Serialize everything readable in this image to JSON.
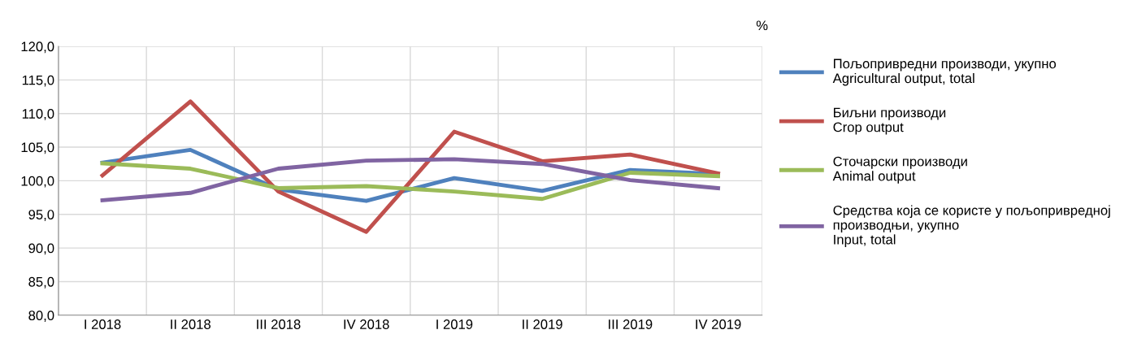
{
  "chart_data": {
    "type": "line",
    "ylabel": "%",
    "categories": [
      "I 2018",
      "II 2018",
      "III 2018",
      "IV 2018",
      "I 2019",
      "II 2019",
      "III 2019",
      "IV 2019"
    ],
    "series": [
      {
        "name": "Пољопривредни производи, укупно\nAgricultural output, total",
        "color": "#4f81bd",
        "values": [
          102.7,
          104.6,
          98.7,
          97.0,
          100.4,
          98.5,
          101.6,
          101.0
        ]
      },
      {
        "name": "Биљни производи\nCrop output",
        "color": "#c0504d",
        "values": [
          100.8,
          111.8,
          98.4,
          92.4,
          107.3,
          102.9,
          103.9,
          101.1
        ]
      },
      {
        "name": "Сточарски производи\nAnimal output",
        "color": "#9bbb59",
        "values": [
          102.6,
          101.8,
          98.9,
          99.2,
          98.4,
          97.3,
          101.2,
          100.7
        ]
      },
      {
        "name": "Средства која се користе у пољопривредној\nпроизводњи, укупно\nInput, total",
        "color": "#8064a2",
        "values": [
          97.1,
          98.2,
          101.8,
          103.0,
          103.2,
          102.5,
          100.1,
          98.9
        ]
      }
    ],
    "ylim": [
      80,
      120
    ],
    "yticks": [
      {
        "value": 80,
        "label": "80,0"
      },
      {
        "value": 85,
        "label": "85,0"
      },
      {
        "value": 90,
        "label": "90,0"
      },
      {
        "value": 95,
        "label": "95,0"
      },
      {
        "value": 100,
        "label": "100,0"
      },
      {
        "value": 105,
        "label": "105,0"
      },
      {
        "value": 110,
        "label": "110,0"
      },
      {
        "value": 115,
        "label": "115,0"
      },
      {
        "value": 120,
        "label": "120,0"
      }
    ],
    "grid": true,
    "legend": "right",
    "marker": "none",
    "line_style": "solid"
  }
}
